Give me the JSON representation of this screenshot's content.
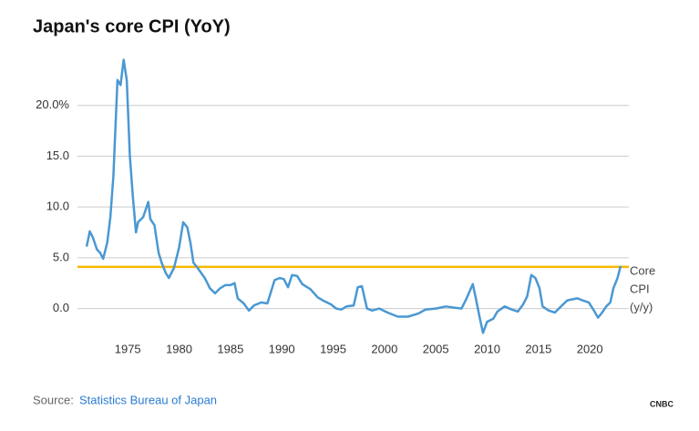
{
  "chart_data": {
    "type": "line",
    "title": "Japan's core CPI (YoY)",
    "x": [
      1971.0,
      1971.3,
      1971.6,
      1972.0,
      1972.3,
      1972.6,
      1973.0,
      1973.3,
      1973.6,
      1974.0,
      1974.3,
      1974.6,
      1974.9,
      1975.2,
      1975.5,
      1975.8,
      1976.0,
      1976.5,
      1977.0,
      1977.2,
      1977.6,
      1978.0,
      1978.3,
      1978.7,
      1979.0,
      1979.5,
      1980.0,
      1980.4,
      1980.8,
      1981.1,
      1981.4,
      1981.8,
      1982.5,
      1983.0,
      1983.5,
      1984.0,
      1984.5,
      1985.0,
      1985.4,
      1985.7,
      1986.3,
      1986.8,
      1987.3,
      1988.0,
      1988.6,
      1989.3,
      1989.8,
      1990.2,
      1990.6,
      1991.0,
      1991.5,
      1992.0,
      1992.8,
      1993.5,
      1994.0,
      1994.8,
      1995.3,
      1995.8,
      1996.3,
      1997.0,
      1997.4,
      1997.8,
      1998.3,
      1998.8,
      1999.5,
      2000.3,
      2001.3,
      2002.3,
      2003.3,
      2004.0,
      2005.0,
      2006.0,
      2006.7,
      2007.5,
      2008.0,
      2008.6,
      2008.9,
      2009.3,
      2009.6,
      2010.0,
      2010.6,
      2011.0,
      2011.7,
      2012.4,
      2013.0,
      2013.5,
      2013.9,
      2014.3,
      2014.7,
      2015.1,
      2015.4,
      2016.0,
      2016.6,
      2017.2,
      2017.8,
      2018.3,
      2018.8,
      2019.3,
      2019.9,
      2020.4,
      2020.8,
      2021.2,
      2021.6,
      2022.0,
      2022.3,
      2022.7,
      2023.0
    ],
    "values": [
      6.1,
      7.6,
      7.0,
      5.8,
      5.5,
      4.9,
      6.5,
      9.0,
      13.0,
      22.5,
      22.0,
      24.5,
      22.5,
      15.0,
      11.0,
      7.5,
      8.5,
      9.0,
      10.5,
      8.8,
      8.2,
      5.5,
      4.5,
      3.5,
      3.0,
      4.0,
      6.0,
      8.5,
      8.0,
      6.5,
      4.5,
      4.0,
      3.0,
      2.0,
      1.5,
      2.0,
      2.3,
      2.3,
      2.5,
      1.0,
      0.5,
      -0.2,
      0.3,
      0.6,
      0.5,
      2.8,
      3.0,
      2.9,
      2.1,
      3.3,
      3.2,
      2.4,
      1.9,
      1.1,
      0.8,
      0.4,
      0.0,
      -0.1,
      0.2,
      0.3,
      2.1,
      2.2,
      0.0,
      -0.2,
      0.0,
      -0.4,
      -0.8,
      -0.8,
      -0.5,
      -0.1,
      0.0,
      0.2,
      0.1,
      0.0,
      1.0,
      2.4,
      1.0,
      -1.0,
      -2.4,
      -1.3,
      -1.0,
      -0.3,
      0.2,
      -0.1,
      -0.3,
      0.4,
      1.2,
      3.3,
      3.0,
      2.0,
      0.2,
      -0.2,
      -0.4,
      0.2,
      0.8,
      0.9,
      1.0,
      0.8,
      0.6,
      -0.2,
      -0.9,
      -0.4,
      0.2,
      0.6,
      2.0,
      3.0,
      4.2
    ],
    "color": "#4a98d3",
    "xlim": [
      1970.1,
      2023.8
    ],
    "xticks": [
      1975,
      1980,
      1985,
      1990,
      1995,
      2000,
      2005,
      2010,
      2015,
      2020
    ],
    "ylim": [
      -3,
      25
    ],
    "yticks": [
      {
        "value": 0,
        "label": "0.0"
      },
      {
        "value": 5,
        "label": "5.0"
      },
      {
        "value": 10,
        "label": "10.0"
      },
      {
        "value": 15,
        "label": "15.0"
      },
      {
        "value": 20,
        "label": "20.0%"
      }
    ],
    "grid": true,
    "hline": {
      "value": 4.1,
      "color": "#f5b800"
    },
    "annotation": [
      "Core",
      "CPI",
      "(y/y)"
    ],
    "source_label": "Source:",
    "source": "Statistics Bureau of Japan",
    "logo": "CNBC"
  }
}
